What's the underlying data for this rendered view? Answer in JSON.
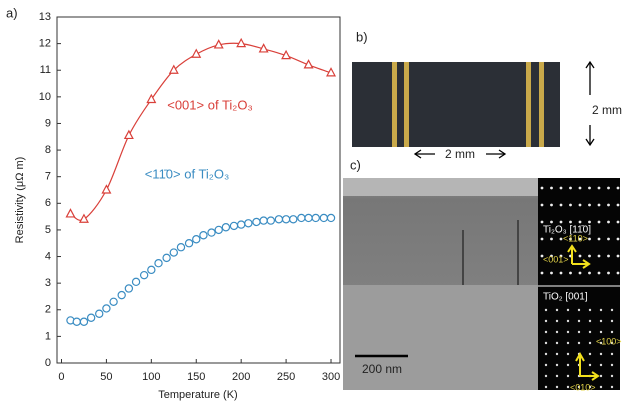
{
  "chart_data": {
    "type": "scatter",
    "x_label": "Temperature (K)",
    "y_label": "Resistivity (μΩ m)",
    "xlim": [
      -5,
      310
    ],
    "ylim": [
      0,
      13
    ],
    "xticks": [
      0,
      50,
      100,
      150,
      200,
      250,
      300
    ],
    "yticks": [
      0,
      1,
      2,
      3,
      4,
      5,
      6,
      7,
      8,
      9,
      10,
      11,
      12,
      13
    ],
    "annotations": [
      "<001> of Ti₂O₃",
      "<11̄0> of Ti₂O₃"
    ],
    "series": [
      {
        "name": "<001> of Ti₂O₃",
        "color": "#d9403a",
        "marker": "triangle",
        "connect": true,
        "x": [
          10,
          25,
          50,
          75,
          100,
          125,
          150,
          175,
          200,
          225,
          250,
          275,
          300
        ],
        "values": [
          5.6,
          5.4,
          6.5,
          8.55,
          9.9,
          11.0,
          11.6,
          11.95,
          12.0,
          11.8,
          11.55,
          11.2,
          10.9
        ]
      },
      {
        "name": "<11̄0> of Ti₂O₃",
        "color": "#3a8cc2",
        "marker": "circle",
        "connect": false,
        "x": [
          10,
          17,
          25,
          33,
          42,
          50,
          58,
          67,
          75,
          83,
          92,
          100,
          108,
          117,
          125,
          133,
          142,
          150,
          158,
          167,
          175,
          183,
          192,
          200,
          208,
          217,
          225,
          233,
          242,
          250,
          258,
          267,
          275,
          283,
          292,
          300
        ],
        "values": [
          1.6,
          1.55,
          1.55,
          1.7,
          1.85,
          2.05,
          2.3,
          2.55,
          2.8,
          3.05,
          3.3,
          3.5,
          3.75,
          3.95,
          4.15,
          4.35,
          4.5,
          4.65,
          4.8,
          4.9,
          5.0,
          5.1,
          5.15,
          5.2,
          5.25,
          5.3,
          5.35,
          5.35,
          5.4,
          5.4,
          5.4,
          5.45,
          5.45,
          5.45,
          5.45,
          5.45
        ]
      }
    ]
  },
  "panels": {
    "a": "a)",
    "b": "b)",
    "c": "c)"
  },
  "sample": {
    "height": "2 mm",
    "width": "2 mm"
  },
  "tem": {
    "scale_bar": "200 nm",
    "top_inset": {
      "title": "Ti₂O₃ [11̄0]",
      "dir1": "<110>",
      "dir2": "<001>"
    },
    "bottom_inset": {
      "title": "TiO₂ [001]",
      "dir1": "<100>",
      "dir2": "<010>"
    }
  }
}
